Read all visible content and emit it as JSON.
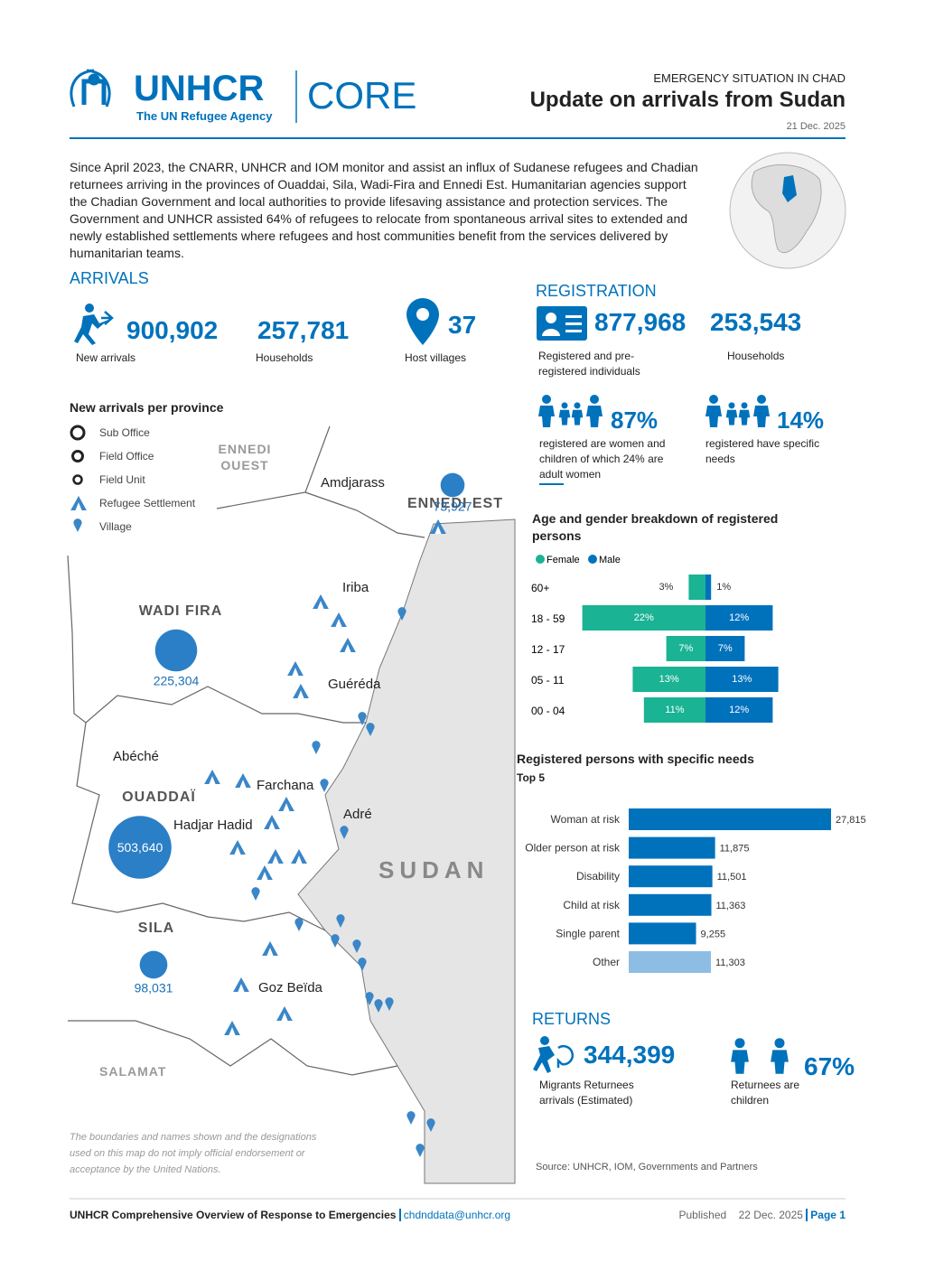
{
  "header": {
    "logo_name": "UNHCR",
    "logo_tagline": "The UN Refugee Agency",
    "product": "CORE",
    "kicker": "EMERGENCY SITUATION IN CHAD",
    "title": "Update on arrivals from Sudan",
    "date": "21 Dec. 2025"
  },
  "intro": "Since April 2023, the CNARR, UNHCR and IOM monitor and assist an influx of Sudanese refugees and Chadian returnees arriving in the provinces of Ouaddai, Sila, Wadi-Fira and Ennedi Est. Humanitarian agencies support the Chadian Government and local authorities to provide lifesaving assistance and protection services. The Government and UNHCR assisted 64% of refugees to relocate from spontaneous arrival sites to extended and newly established settlements where refugees and host communities benefit from the services delivered by humanitarian teams.",
  "arrivals": {
    "heading": "ARRIVALS",
    "stats": [
      {
        "value": "900,902",
        "label": "New arrivals"
      },
      {
        "value": "257,781",
        "label": "Households"
      },
      {
        "value": "37",
        "label": "Host villages"
      }
    ]
  },
  "registration": {
    "heading": "REGISTRATION",
    "stats": [
      {
        "value": "877,968",
        "label": "Registered and pre-registered individuals"
      },
      {
        "value": "253,543",
        "label": "Households"
      }
    ],
    "shares": [
      {
        "value": "87%",
        "label": "registered are women and children of which 24% are adult women"
      },
      {
        "value": "14%",
        "label": "registered have specific needs"
      }
    ]
  },
  "map": {
    "heading": "New arrivals per province",
    "legend": [
      "Sub Office",
      "Field Office",
      "Field Unit",
      "Refugee Settlement",
      "Village"
    ],
    "provinces": [
      {
        "name": "ENNEDI EST",
        "value": 73927,
        "value_label": "73,927"
      },
      {
        "name": "WADI FIRA",
        "value": 225304,
        "value_label": "225,304"
      },
      {
        "name": "OUADDAÏ",
        "value": 503640,
        "value_label": "503,640"
      },
      {
        "name": "SILA",
        "value": 98031,
        "value_label": "98,031"
      }
    ],
    "labels": [
      "ENNEDI OUEST",
      "SALAMAT",
      "SUDAN",
      "Amdjarass",
      "Iriba",
      "Guéréda",
      "Abéché",
      "Farchana",
      "Hadjar Hadid",
      "Adré",
      "Goz Beïda"
    ],
    "disclaimer": "The boundaries and names shown and the designations used on this map do not imply official endorsement or acceptance by the United Nations."
  },
  "age_chart": {
    "title": "Age and gender breakdown of registered persons",
    "categories": [
      "60+",
      "18 - 59",
      "12 - 17",
      "05 - 11",
      "00 - 04"
    ],
    "series": [
      {
        "name": "Female",
        "color": "#1ab394",
        "values": [
          3,
          22,
          7,
          13,
          11
        ],
        "value_labels": [
          "3%",
          "22%",
          "7%",
          "13%",
          "11%"
        ]
      },
      {
        "name": "Male",
        "color": "#0072bc",
        "values": [
          1,
          12,
          7,
          13,
          12
        ],
        "value_labels": [
          "1%",
          "12%",
          "7%",
          "13%",
          "12%"
        ]
      }
    ]
  },
  "needs_chart": {
    "title": "Registered persons with specific needs",
    "subtitle": "Top 5",
    "categories": [
      "Woman at risk",
      "Older person at risk",
      "Disability",
      "Child at risk",
      "Single parent",
      "Other"
    ],
    "values": [
      27815,
      11875,
      11501,
      11363,
      9255,
      11303
    ],
    "value_labels": [
      "27,815",
      "11,875",
      "11,501",
      "11,363",
      "9,255",
      "11,303"
    ],
    "colors": [
      "#0072bc",
      "#0072bc",
      "#0072bc",
      "#0072bc",
      "#0072bc",
      "#8ebde4"
    ]
  },
  "returns": {
    "heading": "RETURNS",
    "stats": [
      {
        "value": "344,399",
        "label": "Migrants Returnees arrivals (Estimated)"
      },
      {
        "value": "67%",
        "label": "Returnees are children"
      }
    ]
  },
  "source": "Source: UNHCR, IOM, Governments and Partners",
  "footer": {
    "left": "UNHCR Comprehensive Overview of Response to Emergencies",
    "email": "chdnddata@unhcr.org",
    "published": "Published",
    "date": "22 Dec. 2025",
    "page": "Page 1"
  }
}
